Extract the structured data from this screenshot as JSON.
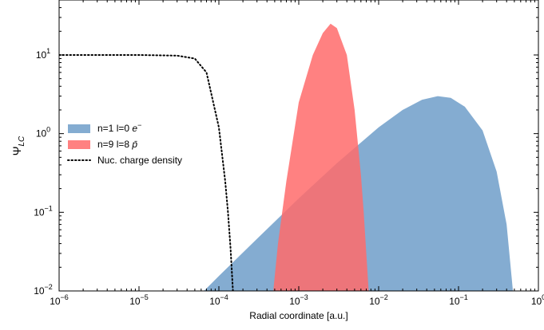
{
  "chart_data": {
    "type": "area",
    "title": "",
    "xlabel": "Radial coordinate [a.u.]",
    "ylabel": "Ψ",
    "ylabel_sub": "LC",
    "xscale": "log",
    "yscale": "log",
    "xlim": [
      1e-06,
      1
    ],
    "ylim": [
      0.01,
      50
    ],
    "grid": false,
    "legend_position": "center-left",
    "x_ticks": [
      {
        "base": "10",
        "exp": "−6"
      },
      {
        "base": "10",
        "exp": "−5"
      },
      {
        "base": "10",
        "exp": "−4"
      },
      {
        "base": "10",
        "exp": "−3"
      },
      {
        "base": "10",
        "exp": "−2"
      },
      {
        "base": "10",
        "exp": "−1"
      },
      {
        "base": "10",
        "exp": "0"
      }
    ],
    "y_ticks": [
      {
        "base": "10",
        "exp": "−2"
      },
      {
        "base": "10",
        "exp": "−1"
      },
      {
        "base": "10",
        "exp": "0"
      },
      {
        "base": "10",
        "exp": "1"
      }
    ],
    "series": [
      {
        "name": "n=1 l=0 e⁻",
        "legend_main": "n=1 l=0 ",
        "legend_symbol": "e",
        "legend_sup": "−",
        "style": "filled",
        "color": "#6e9dc9",
        "opacity": 0.85,
        "points": [
          [
            6.5e-05,
            0.01
          ],
          [
            0.0001,
            0.0155
          ],
          [
            0.0003,
            0.046
          ],
          [
            0.001,
            0.15
          ],
          [
            0.003,
            0.42
          ],
          [
            0.01,
            1.2
          ],
          [
            0.02,
            2.0
          ],
          [
            0.035,
            2.7
          ],
          [
            0.055,
            3.0
          ],
          [
            0.08,
            2.85
          ],
          [
            0.12,
            2.2
          ],
          [
            0.2,
            1.1
          ],
          [
            0.3,
            0.33
          ],
          [
            0.4,
            0.07
          ],
          [
            0.48,
            0.01
          ]
        ]
      },
      {
        "name": "n=9 l=8 p̄",
        "legend_main": "n=9 l=8 ",
        "legend_symbol": "p̄",
        "legend_sup": "",
        "style": "filled",
        "color": "#ff6b6b",
        "opacity": 0.85,
        "points": [
          [
            0.00048,
            0.01
          ],
          [
            0.00055,
            0.04
          ],
          [
            0.0007,
            0.25
          ],
          [
            0.001,
            2.5
          ],
          [
            0.0015,
            10
          ],
          [
            0.002,
            19
          ],
          [
            0.0025,
            25
          ],
          [
            0.003,
            22
          ],
          [
            0.004,
            10
          ],
          [
            0.005,
            2
          ],
          [
            0.006,
            0.3
          ],
          [
            0.0065,
            0.1
          ],
          [
            0.0075,
            0.01
          ]
        ]
      },
      {
        "name": "Nuc. charge density",
        "legend_main": "Nuc. charge density",
        "legend_symbol": "",
        "legend_sup": "",
        "style": "dotted",
        "color": "#000000",
        "points": [
          [
            1e-06,
            10
          ],
          [
            1e-05,
            10
          ],
          [
            3e-05,
            9.8
          ],
          [
            5e-05,
            9
          ],
          [
            7e-05,
            6
          ],
          [
            0.0001,
            1.2
          ],
          [
            0.00012,
            0.25
          ],
          [
            0.00013,
            0.1
          ],
          [
            0.00014,
            0.035
          ],
          [
            0.00015,
            0.01
          ]
        ]
      }
    ]
  }
}
